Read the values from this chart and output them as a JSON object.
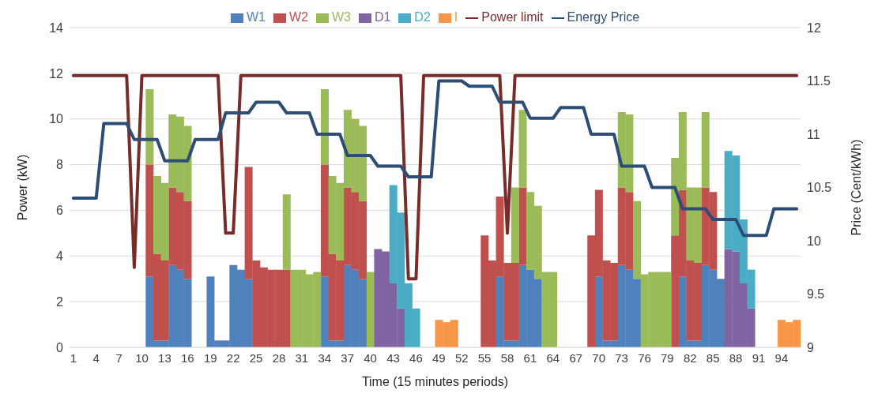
{
  "chart_data": {
    "type": "bar",
    "stacked": true,
    "xlabel": "Time (15 minutes periods)",
    "ylabel": "Power (kW)",
    "y2label": "Price (Cent/kWh)",
    "categories": [
      "1",
      null,
      null,
      "4",
      null,
      null,
      "7",
      null,
      null,
      "10",
      null,
      null,
      "13",
      null,
      null,
      "16",
      null,
      null,
      "19",
      null,
      null,
      "22",
      null,
      null,
      "25",
      null,
      null,
      "28",
      null,
      null,
      "31",
      null,
      null,
      "34",
      null,
      null,
      "37",
      null,
      null,
      "40",
      null,
      null,
      "43",
      null,
      null,
      "46",
      null,
      null,
      "49",
      null,
      null,
      "52",
      null,
      null,
      "55",
      null,
      null,
      "58",
      null,
      null,
      "61",
      null,
      null,
      "64",
      null,
      null,
      "67",
      null,
      null,
      "70",
      null,
      null,
      "73",
      null,
      null,
      "76",
      null,
      null,
      "79",
      null,
      null,
      "82",
      null,
      null,
      "85",
      null,
      null,
      "88",
      null,
      null,
      "91",
      null,
      null,
      "94",
      null,
      null
    ],
    "ylim": [
      0,
      14
    ],
    "yticks": [
      0,
      2,
      4,
      6,
      8,
      10,
      12,
      14
    ],
    "y2lim": [
      9,
      12
    ],
    "y2ticks": [
      9,
      9.5,
      10,
      10.5,
      11,
      11.5,
      12
    ],
    "grid": "y",
    "legend": "top",
    "marker": "none",
    "line_style": "solid",
    "series": [
      {
        "name": "W1",
        "color": "#4f81bd",
        "values": [
          null,
          null,
          null,
          null,
          null,
          null,
          null,
          null,
          null,
          null,
          3.1,
          0.3,
          0.3,
          3.6,
          3.4,
          3.0,
          null,
          null,
          3.1,
          0.3,
          0.3,
          3.6,
          3.4,
          3.0,
          null,
          null,
          null,
          null,
          null,
          null,
          null,
          null,
          null,
          3.1,
          0.3,
          0.3,
          3.6,
          3.4,
          3.0,
          null,
          null,
          null,
          null,
          null,
          null,
          null,
          null,
          null,
          null,
          null,
          null,
          null,
          null,
          null,
          null,
          null,
          3.1,
          0.3,
          0.3,
          3.6,
          3.4,
          3.0,
          null,
          null,
          null,
          null,
          null,
          null,
          null,
          3.1,
          0.3,
          0.3,
          3.6,
          3.4,
          3.0,
          null,
          null,
          null,
          null,
          null,
          3.1,
          0.3,
          0.3,
          3.6,
          3.4,
          3.0,
          null,
          null,
          null,
          null,
          null,
          null,
          null,
          null,
          null,
          null
        ]
      },
      {
        "name": "W2",
        "color": "#c0504d",
        "values": [
          null,
          null,
          null,
          null,
          null,
          null,
          null,
          null,
          null,
          null,
          4.9,
          3.8,
          3.5,
          3.4,
          3.4,
          3.4,
          null,
          null,
          null,
          null,
          null,
          null,
          null,
          4.9,
          3.8,
          3.5,
          3.4,
          3.4,
          3.4,
          null,
          null,
          null,
          null,
          4.9,
          3.8,
          3.5,
          3.4,
          3.4,
          3.4,
          null,
          null,
          null,
          null,
          null,
          null,
          null,
          null,
          null,
          null,
          null,
          null,
          null,
          null,
          null,
          4.9,
          3.8,
          3.5,
          3.4,
          3.4,
          3.4,
          null,
          null,
          null,
          null,
          null,
          null,
          null,
          null,
          4.9,
          3.8,
          3.5,
          3.4,
          3.4,
          3.4,
          null,
          null,
          null,
          null,
          null,
          4.9,
          3.8,
          3.5,
          3.4,
          3.4,
          3.4,
          null,
          null,
          null,
          null,
          null,
          null,
          null,
          null,
          null,
          null,
          null
        ]
      },
      {
        "name": "W3",
        "color": "#9bbb59",
        "values": [
          null,
          null,
          null,
          null,
          null,
          null,
          null,
          null,
          null,
          null,
          3.3,
          3.4,
          3.4,
          3.2,
          3.3,
          3.3,
          null,
          null,
          null,
          null,
          null,
          null,
          null,
          null,
          null,
          null,
          null,
          null,
          3.3,
          3.4,
          3.4,
          3.2,
          3.3,
          3.3,
          3.4,
          3.4,
          3.4,
          3.2,
          3.3,
          3.3,
          null,
          null,
          null,
          null,
          null,
          null,
          null,
          null,
          null,
          null,
          null,
          null,
          null,
          null,
          null,
          null,
          null,
          null,
          3.3,
          3.4,
          3.4,
          3.2,
          3.3,
          3.3,
          null,
          null,
          null,
          null,
          null,
          null,
          null,
          null,
          3.3,
          3.4,
          3.4,
          3.2,
          3.3,
          3.3,
          3.3,
          3.4,
          3.4,
          3.2,
          3.3,
          3.3,
          null,
          null,
          null,
          null,
          null,
          null,
          null,
          null,
          null,
          null,
          null,
          null
        ]
      },
      {
        "name": "D1",
        "color": "#8064a2",
        "values": [
          null,
          null,
          null,
          null,
          null,
          null,
          null,
          null,
          null,
          null,
          null,
          null,
          null,
          null,
          null,
          null,
          null,
          null,
          null,
          null,
          null,
          null,
          null,
          null,
          null,
          null,
          null,
          null,
          null,
          null,
          null,
          null,
          null,
          null,
          null,
          null,
          null,
          null,
          null,
          null,
          4.3,
          4.2,
          2.8,
          1.7,
          null,
          null,
          null,
          null,
          null,
          null,
          null,
          null,
          null,
          null,
          null,
          null,
          null,
          null,
          null,
          null,
          null,
          null,
          null,
          null,
          null,
          null,
          null,
          null,
          null,
          null,
          null,
          null,
          null,
          null,
          null,
          null,
          null,
          null,
          null,
          null,
          null,
          null,
          null,
          null,
          null,
          null,
          4.3,
          4.2,
          2.8,
          1.7,
          null,
          null,
          null,
          null,
          null,
          null
        ]
      },
      {
        "name": "D2",
        "color": "#4bacc6",
        "values": [
          null,
          null,
          null,
          null,
          null,
          null,
          null,
          null,
          null,
          null,
          null,
          null,
          null,
          null,
          null,
          null,
          null,
          null,
          null,
          null,
          null,
          null,
          null,
          null,
          null,
          null,
          null,
          null,
          null,
          null,
          null,
          null,
          null,
          null,
          null,
          null,
          null,
          null,
          null,
          null,
          null,
          null,
          4.3,
          4.2,
          2.8,
          1.7,
          null,
          null,
          null,
          null,
          null,
          null,
          null,
          null,
          null,
          null,
          null,
          null,
          null,
          null,
          null,
          null,
          null,
          null,
          null,
          null,
          null,
          null,
          null,
          null,
          null,
          null,
          null,
          null,
          null,
          null,
          null,
          null,
          null,
          null,
          null,
          null,
          null,
          null,
          null,
          null,
          4.3,
          4.2,
          2.8,
          1.7,
          null,
          null,
          null,
          null,
          null,
          null
        ]
      },
      {
        "name": "I",
        "color": "#f79646",
        "values": [
          null,
          null,
          null,
          null,
          null,
          null,
          null,
          null,
          null,
          null,
          null,
          null,
          null,
          null,
          null,
          null,
          null,
          null,
          null,
          null,
          null,
          null,
          null,
          null,
          null,
          null,
          null,
          null,
          null,
          null,
          null,
          null,
          null,
          null,
          null,
          null,
          null,
          null,
          null,
          null,
          null,
          null,
          null,
          null,
          null,
          null,
          null,
          null,
          1.2,
          1.1,
          1.2,
          null,
          null,
          null,
          null,
          null,
          null,
          null,
          null,
          null,
          null,
          null,
          null,
          null,
          null,
          null,
          null,
          null,
          null,
          null,
          null,
          null,
          null,
          null,
          null,
          null,
          null,
          null,
          null,
          null,
          null,
          null,
          null,
          null,
          null,
          null,
          null,
          null,
          null,
          null,
          null,
          null,
          null,
          1.2,
          1.1,
          1.2
        ]
      },
      {
        "name": "Power limit",
        "type": "line",
        "color": "#772c2a",
        "values": [
          11.9,
          11.9,
          11.9,
          11.9,
          11.9,
          11.9,
          11.9,
          11.9,
          3.5,
          11.9,
          11.9,
          11.9,
          11.9,
          11.9,
          11.9,
          11.9,
          11.9,
          11.9,
          11.9,
          11.9,
          5.0,
          5.0,
          11.9,
          11.9,
          11.9,
          11.9,
          11.9,
          11.9,
          11.9,
          11.9,
          11.9,
          11.9,
          11.9,
          11.9,
          11.9,
          11.9,
          11.9,
          11.9,
          11.9,
          11.9,
          11.9,
          11.9,
          11.9,
          11.9,
          3.0,
          3.0,
          11.9,
          11.9,
          11.9,
          11.9,
          11.9,
          11.9,
          11.9,
          11.9,
          11.9,
          11.9,
          11.9,
          5.0,
          11.9,
          11.9,
          11.9,
          11.9,
          11.9,
          11.9,
          11.9,
          11.9,
          11.9,
          11.9,
          11.9,
          11.9,
          11.9,
          11.9,
          11.9,
          11.9,
          11.9,
          11.9,
          11.9,
          11.9,
          11.9,
          11.9,
          11.9,
          11.9,
          11.9,
          11.9,
          11.9,
          11.9,
          11.9,
          11.9,
          11.9,
          11.9,
          11.9,
          11.9,
          11.9,
          11.9,
          11.9,
          11.9
        ]
      },
      {
        "name": "Energy Price",
        "type": "line",
        "axis": "y2",
        "color": "#2c4d75",
        "values": [
          10.4,
          10.4,
          10.4,
          10.4,
          11.1,
          11.1,
          11.1,
          11.1,
          10.95,
          10.95,
          10.95,
          10.95,
          10.75,
          10.75,
          10.75,
          10.75,
          10.95,
          10.95,
          10.95,
          10.95,
          11.2,
          11.2,
          11.2,
          11.2,
          11.3,
          11.3,
          11.3,
          11.3,
          11.2,
          11.2,
          11.2,
          11.2,
          11.0,
          11.0,
          11.0,
          11.0,
          10.8,
          10.8,
          10.8,
          10.8,
          10.7,
          10.7,
          10.7,
          10.7,
          10.6,
          10.6,
          10.6,
          10.6,
          11.5,
          11.5,
          11.5,
          11.5,
          11.45,
          11.45,
          11.45,
          11.45,
          11.3,
          11.3,
          11.3,
          11.3,
          11.15,
          11.15,
          11.15,
          11.15,
          11.25,
          11.25,
          11.25,
          11.25,
          11.0,
          11.0,
          11.0,
          11.0,
          10.7,
          10.7,
          10.7,
          10.7,
          10.5,
          10.5,
          10.5,
          10.5,
          10.3,
          10.3,
          10.3,
          10.3,
          10.2,
          10.2,
          10.2,
          10.2,
          10.05,
          10.05,
          10.05,
          10.05,
          10.3,
          10.3,
          10.3,
          10.3
        ]
      }
    ]
  }
}
